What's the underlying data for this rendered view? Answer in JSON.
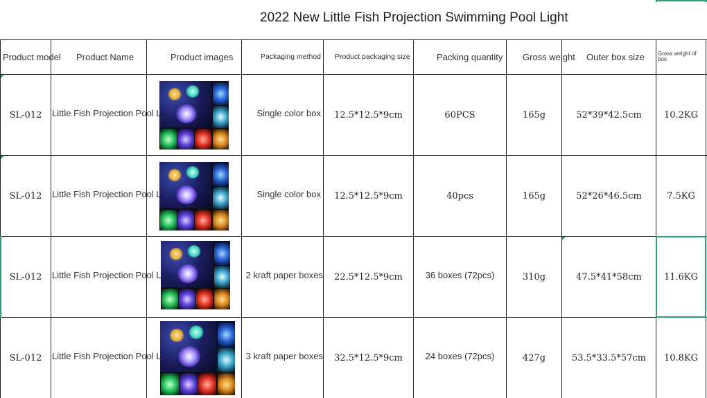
{
  "sheet": {
    "title": "2022 New Little Fish Projection Swimming Pool Light",
    "headers": {
      "model": "Product model",
      "name": "Product Name",
      "images": "Product images",
      "packaging_method": "Packaging method",
      "packaging_size": "Product packaging size",
      "packing_qty": "Packing quantity",
      "gross_weight": "Gross weight",
      "outer_box": "Outer box size",
      "gross_weight_box": "Gross weight of box"
    },
    "rows": [
      {
        "model": "SL-012",
        "name": "Little Fish Projection Pool Light",
        "packaging_method": "Single color box",
        "packaging_size": "12.5*12.5*9cm",
        "packing_qty": "60PCS",
        "gross_weight": "165g",
        "outer_box": "52*39*42.5cm",
        "gross_weight_box": "10.2KG"
      },
      {
        "model": "SL-012",
        "name": "Little Fish Projection Pool Light",
        "packaging_method": "Single color box",
        "packaging_size": "12.5*12.5*9cm",
        "packing_qty": "40pcs",
        "gross_weight": "165g",
        "outer_box": "52*26*46.5cm",
        "gross_weight_box": "7.5KG"
      },
      {
        "model": "SL-012",
        "name": "Little Fish Projection Pool Light",
        "packaging_method": "2 kraft paper boxes",
        "packaging_size": "22.5*12.5*9cm",
        "packing_qty": "36 boxes (72pcs)",
        "gross_weight": "310g",
        "outer_box": "47.5*41*58cm",
        "gross_weight_box": "11.6KG"
      },
      {
        "model": "SL-012",
        "name": "Little Fish Projection Pool Light",
        "packaging_method": "3 kraft paper boxes",
        "packaging_size": "32.5*12.5*9cm",
        "packing_qty": "24 boxes (72pcs)",
        "gross_weight": "427g",
        "outer_box": "53.5*33.5*57cm",
        "gross_weight_box": "10.8KG"
      }
    ],
    "selection_color": "#23a26b"
  }
}
